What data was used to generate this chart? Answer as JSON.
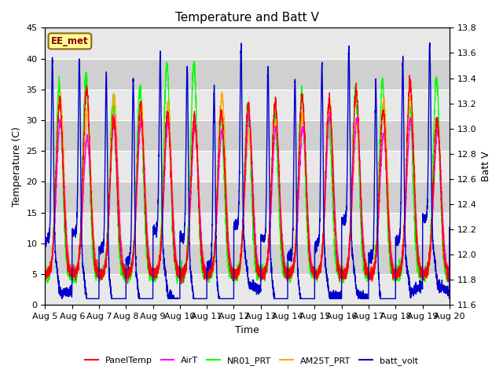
{
  "title": "Temperature and Batt V",
  "xlabel": "Time",
  "ylabel_left": "Temperature (C)",
  "ylabel_right": "Batt V",
  "station_label": "EE_met",
  "x_tick_labels": [
    "Aug 5",
    "Aug 6",
    "Aug 7",
    "Aug 8",
    "Aug 9",
    "Aug 10",
    "Aug 11",
    "Aug 12",
    "Aug 13",
    "Aug 14",
    "Aug 15",
    "Aug 16",
    "Aug 17",
    "Aug 18",
    "Aug 19",
    "Aug 20"
  ],
  "ylim_left": [
    0,
    45
  ],
  "ylim_right": [
    11.6,
    13.8
  ],
  "yticks_left": [
    0,
    5,
    10,
    15,
    20,
    25,
    30,
    35,
    40,
    45
  ],
  "yticks_right": [
    11.6,
    11.8,
    12.0,
    12.2,
    12.4,
    12.6,
    12.8,
    13.0,
    13.2,
    13.4,
    13.6,
    13.8
  ],
  "bg_color": "#ffffff",
  "plot_bg_color": "#d8d8d8",
  "grid_color": "#ffffff",
  "zebra_light": "#e8e8e8",
  "zebra_dark": "#d0d0d0",
  "colors": {
    "PanelTemp": "#ff0000",
    "AirT": "#ff00ff",
    "NR01_PRT": "#00ff00",
    "AM25T_PRT": "#ffaa00",
    "batt_volt": "#0000cc"
  },
  "n_days": 15,
  "pts_per_day": 288,
  "title_fontsize": 11,
  "label_fontsize": 9,
  "tick_fontsize": 8
}
